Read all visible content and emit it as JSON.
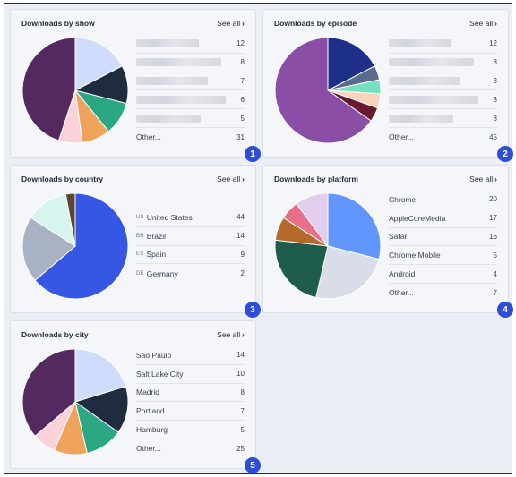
{
  "see_all_label": "See all",
  "cards": [
    {
      "title": "Downloads by show",
      "badge": "1",
      "rows": [
        {
          "redacted": true,
          "value": "12"
        },
        {
          "redacted": true,
          "value": "8"
        },
        {
          "redacted": true,
          "value": "7"
        },
        {
          "redacted": true,
          "value": "6"
        },
        {
          "redacted": true,
          "value": "5"
        },
        {
          "label": "Other...",
          "value": "31"
        }
      ],
      "slices": [
        {
          "value": 12,
          "color": "#cfdcfb"
        },
        {
          "value": 8,
          "color": "#1f2b3f"
        },
        {
          "value": 7,
          "color": "#2ba784"
        },
        {
          "value": 6,
          "color": "#efa25a"
        },
        {
          "value": 5,
          "color": "#fad2d9"
        },
        {
          "value": 31,
          "color": "#54295f"
        }
      ]
    },
    {
      "title": "Downloads by episode",
      "badge": "2",
      "rows": [
        {
          "redacted": true,
          "value": "12"
        },
        {
          "redacted": true,
          "value": "3"
        },
        {
          "redacted": true,
          "value": "3"
        },
        {
          "redacted": true,
          "value": "3"
        },
        {
          "redacted": true,
          "value": "3"
        },
        {
          "label": "Other...",
          "value": "45"
        }
      ],
      "slices": [
        {
          "value": 12,
          "color": "#1e2f8a"
        },
        {
          "value": 3,
          "color": "#5a6b8c"
        },
        {
          "value": 3,
          "color": "#74e0c0"
        },
        {
          "value": 3,
          "color": "#f9d3be"
        },
        {
          "value": 3,
          "color": "#6a1a2e"
        },
        {
          "value": 45,
          "color": "#8a4ea6"
        }
      ]
    },
    {
      "title": "Downloads by country",
      "badge": "3",
      "rows": [
        {
          "code": "US",
          "label": "United States",
          "value": "44"
        },
        {
          "code": "BR",
          "label": "Brazil",
          "value": "14"
        },
        {
          "code": "ES",
          "label": "Spain",
          "value": "9"
        },
        {
          "code": "DE",
          "label": "Germany",
          "value": "2"
        }
      ],
      "slices": [
        {
          "value": 44,
          "color": "#3557e3"
        },
        {
          "value": 14,
          "color": "#a9b2c3"
        },
        {
          "value": 9,
          "color": "#d6f5ee"
        },
        {
          "value": 2,
          "color": "#5b4535"
        }
      ]
    },
    {
      "title": "Downloads by platform",
      "badge": "4",
      "rows": [
        {
          "label": "Chrome",
          "value": "20"
        },
        {
          "label": "AppleCoreMedia",
          "value": "17"
        },
        {
          "label": "Safari",
          "value": "16"
        },
        {
          "label": "Chrome Mobile",
          "value": "5"
        },
        {
          "label": "Android",
          "value": "4"
        },
        {
          "label": "Other...",
          "value": "7"
        }
      ],
      "slices": [
        {
          "value": 20,
          "color": "#6096fd"
        },
        {
          "value": 17,
          "color": "#d9dde8"
        },
        {
          "value": 16,
          "color": "#1e5c4c"
        },
        {
          "value": 5,
          "color": "#b56a2b"
        },
        {
          "value": 4,
          "color": "#e86f88"
        },
        {
          "value": 7,
          "color": "#e2cdee"
        }
      ]
    },
    {
      "title": "Downloads by city",
      "badge": "5",
      "rows": [
        {
          "label": "São Paulo",
          "value": "14"
        },
        {
          "label": "Salt Lake City",
          "value": "10"
        },
        {
          "label": "Madrid",
          "value": "8"
        },
        {
          "label": "Portland",
          "value": "7"
        },
        {
          "label": "Hamburg",
          "value": "5"
        },
        {
          "label": "Other...",
          "value": "25"
        }
      ],
      "slices": [
        {
          "value": 14,
          "color": "#cfdcfb"
        },
        {
          "value": 10,
          "color": "#1f2b3f"
        },
        {
          "value": 8,
          "color": "#2ba784"
        },
        {
          "value": 7,
          "color": "#efa25a"
        },
        {
          "value": 5,
          "color": "#fad2d9"
        },
        {
          "value": 25,
          "color": "#54295f"
        }
      ]
    }
  ]
}
